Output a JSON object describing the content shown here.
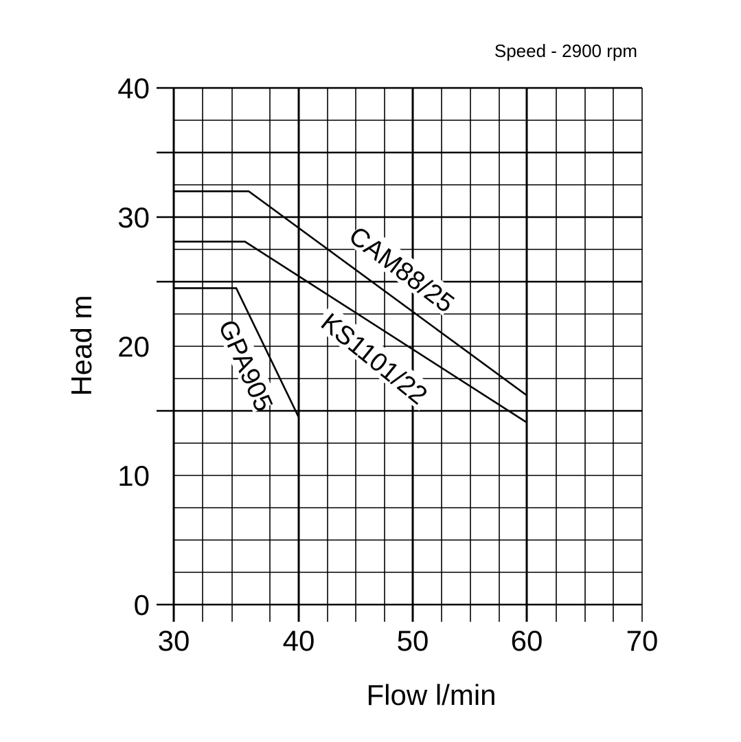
{
  "chart_data": {
    "type": "line",
    "title": "Speed - 2900 rpm",
    "xlabel": "Flow l/min",
    "ylabel": "Head m",
    "xlim": [
      30,
      70
    ],
    "ylim": [
      0,
      40
    ],
    "x_ticks": [
      "30",
      "40",
      "50",
      "60",
      "70"
    ],
    "y_ticks": [
      "0",
      "10",
      "20",
      "30",
      "40"
    ],
    "grid": true,
    "series": [
      {
        "name": "CAM88/25",
        "x": [
          30,
          36,
          60,
          60
        ],
        "y": [
          32,
          32,
          16.2,
          0
        ]
      },
      {
        "name": "KS1101/22",
        "x": [
          30,
          35.7,
          60,
          60
        ],
        "y": [
          28.1,
          28.1,
          14.1,
          0
        ]
      },
      {
        "name": "GPA905",
        "x": [
          30,
          35,
          40,
          40
        ],
        "y": [
          24.5,
          24.5,
          14.5,
          0
        ]
      }
    ]
  }
}
